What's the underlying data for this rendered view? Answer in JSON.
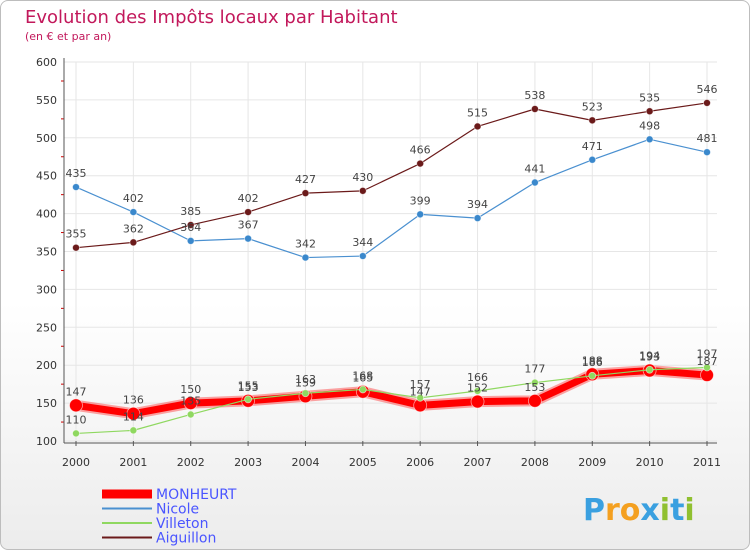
{
  "colors": {
    "title": "#c2185b",
    "legend_text": "#4a55ff",
    "axis": "#555555",
    "grid": "#e6e6e6",
    "marker_tick": "#d00000"
  },
  "chart_data": {
    "type": "line",
    "title": "Evolution des Impôts locaux par Habitant",
    "subtitle": "(en € et par an)",
    "xlabel": "",
    "ylabel": "",
    "ylim": [
      100,
      600
    ],
    "yticks": [
      100,
      150,
      200,
      250,
      300,
      350,
      400,
      450,
      500,
      550,
      600
    ],
    "categories": [
      "2000",
      "2001",
      "2002",
      "2003",
      "2004",
      "2005",
      "2006",
      "2007",
      "2008",
      "2009",
      "2010",
      "2011"
    ],
    "legend_position": "bottom-left",
    "series": [
      {
        "name": "MONHEURT",
        "color": "#ff0000",
        "values": [
          147,
          136,
          150,
          153,
          159,
          165,
          147,
          152,
          153,
          188,
          193,
          187
        ]
      },
      {
        "name": "Nicole",
        "color": "#4a90d0",
        "values": [
          435,
          402,
          364,
          367,
          342,
          344,
          399,
          394,
          441,
          471,
          498,
          481
        ]
      },
      {
        "name": "Villeton",
        "color": "#8fd860",
        "values": [
          110,
          114,
          135,
          155,
          163,
          168,
          157,
          166,
          177,
          186,
          194,
          197
        ]
      },
      {
        "name": "Aiguillon",
        "color": "#6b1a1a",
        "values": [
          355,
          362,
          385,
          402,
          427,
          430,
          466,
          515,
          538,
          523,
          535,
          546
        ]
      }
    ]
  },
  "logo": {
    "text": "Proxiti",
    "letter_colors": [
      "#3aa0e0",
      "#f4a020",
      "#f4a020",
      "#3aa0e0",
      "#90c030",
      "#3aa0e0",
      "#90c030"
    ]
  }
}
